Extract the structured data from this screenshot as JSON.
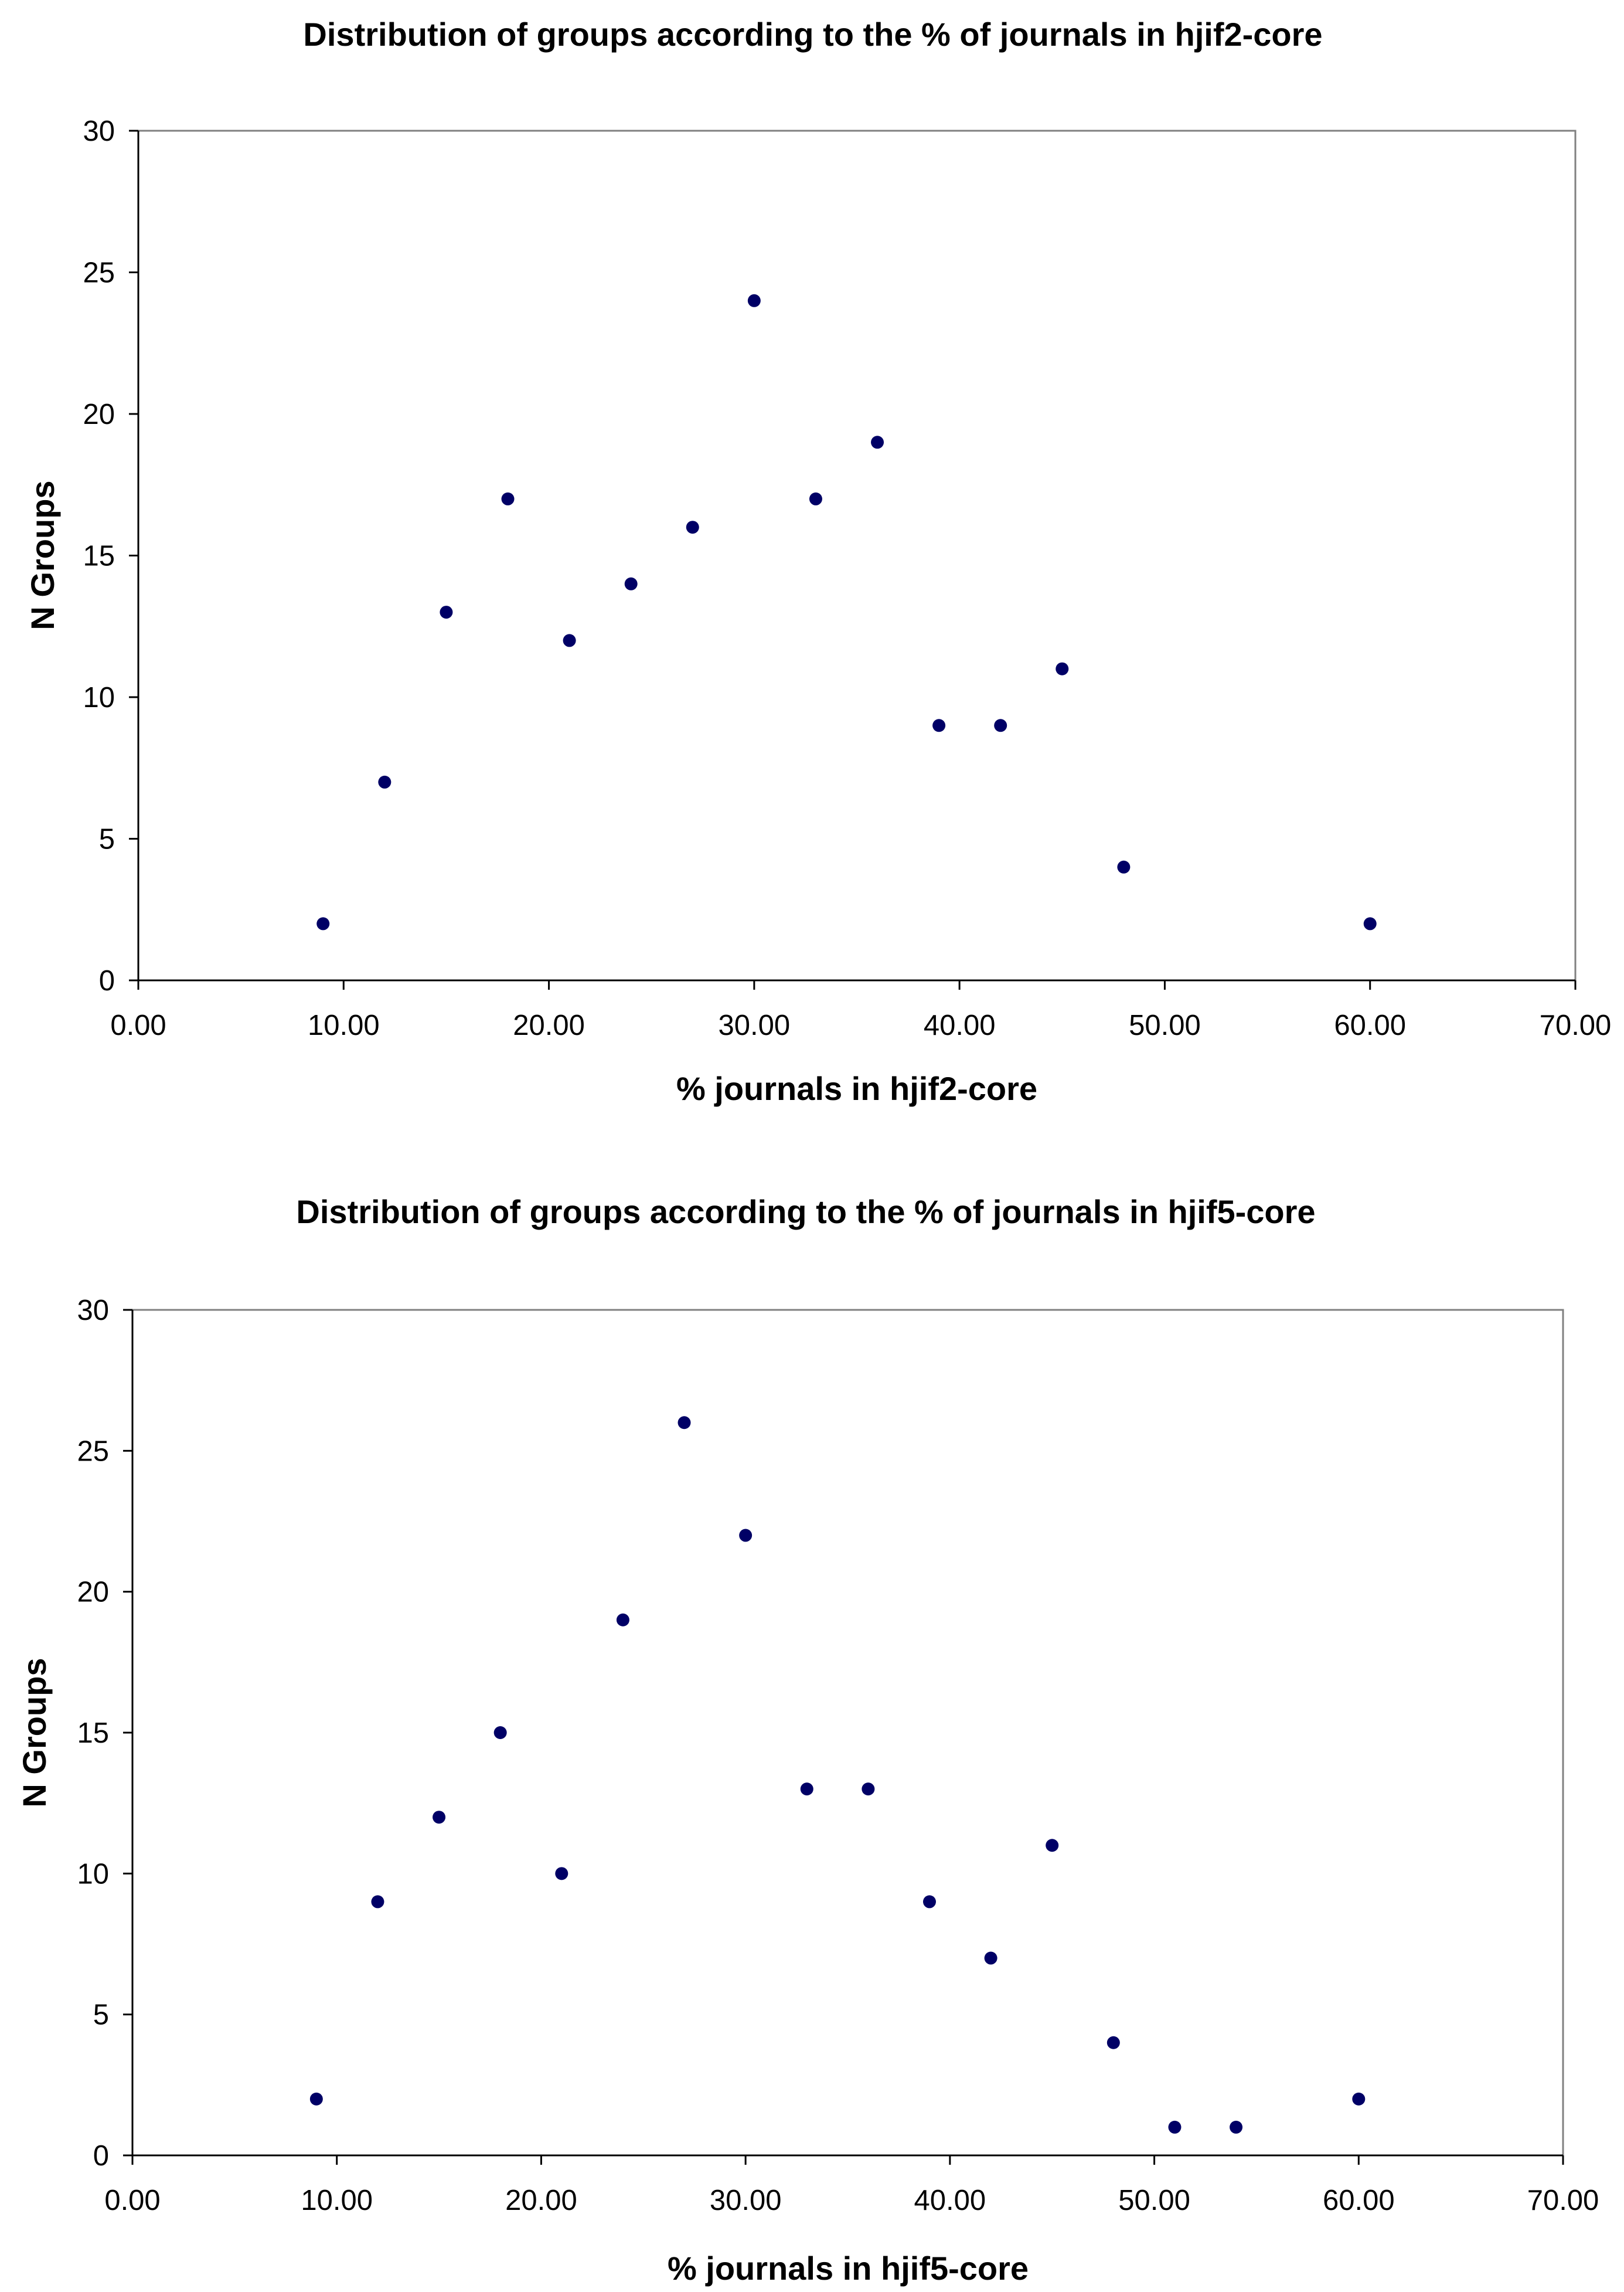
{
  "chart_data": [
    {
      "type": "scatter",
      "title": "Distribution of groups according to the % of journals in hjif2-core",
      "xlabel": "% journals in hjif2-core",
      "ylabel": "N Groups",
      "xlim": [
        0,
        70
      ],
      "ylim": [
        0,
        30
      ],
      "x_ticks": [
        "0.00",
        "10.00",
        "20.00",
        "30.00",
        "40.00",
        "50.00",
        "60.00",
        "70.00"
      ],
      "y_ticks": [
        "0",
        "5",
        "10",
        "15",
        "20",
        "25",
        "30"
      ],
      "grid": false,
      "marker_color": "#000066",
      "series": [
        {
          "name": "hjif2-core",
          "x": [
            9,
            12,
            15,
            18,
            21,
            24,
            27,
            30,
            33,
            36,
            39,
            42,
            45,
            48,
            60
          ],
          "y": [
            2,
            7,
            13,
            17,
            12,
            14,
            16,
            24,
            17,
            19,
            9,
            9,
            11,
            4,
            2
          ]
        }
      ]
    },
    {
      "type": "scatter",
      "title": "Distribution of groups according to the % of journals in hjif5-core",
      "xlabel": "% journals in hjif5-core",
      "ylabel": "N Groups",
      "xlim": [
        0,
        70
      ],
      "ylim": [
        0,
        30
      ],
      "x_ticks": [
        "0.00",
        "10.00",
        "20.00",
        "30.00",
        "40.00",
        "50.00",
        "60.00",
        "70.00"
      ],
      "y_ticks": [
        "0",
        "5",
        "10",
        "15",
        "20",
        "25",
        "30"
      ],
      "grid": false,
      "marker_color": "#000066",
      "series": [
        {
          "name": "hjif5-core",
          "x": [
            9,
            12,
            15,
            18,
            21,
            24,
            27,
            30,
            33,
            36,
            39,
            42,
            45,
            48,
            51,
            54,
            60
          ],
          "y": [
            2,
            9,
            12,
            15,
            10,
            19,
            26,
            22,
            13,
            13,
            9,
            7,
            11,
            4,
            1,
            1,
            2
          ]
        }
      ]
    }
  ]
}
